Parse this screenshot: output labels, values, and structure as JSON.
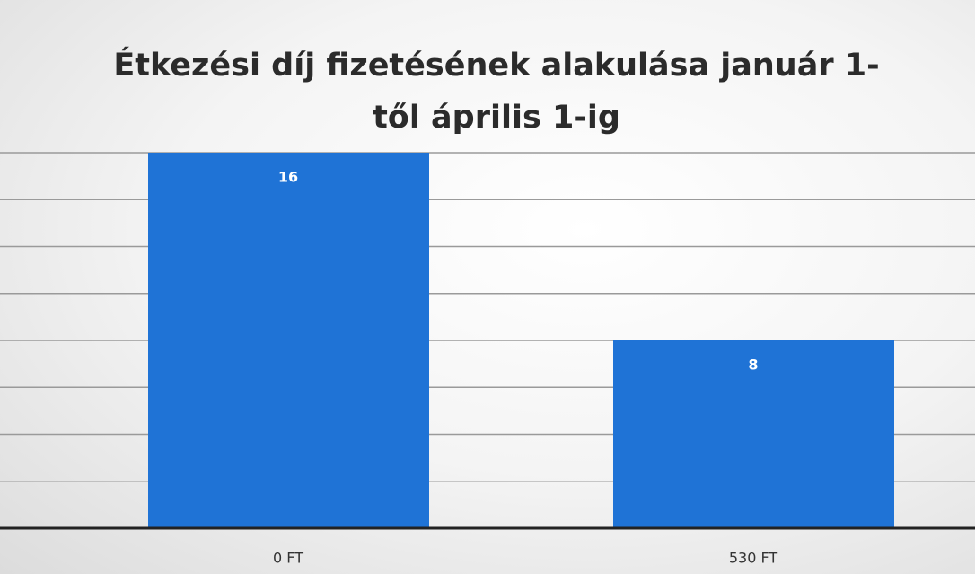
{
  "chart_data": {
    "type": "bar",
    "title": "Étkezési díj fizetésének alakulása január 1-től április 1-ig",
    "categories": [
      "0 FT",
      "530 FT"
    ],
    "values": [
      16,
      8
    ],
    "color": "#1f73d6",
    "ylim": [
      0,
      16
    ],
    "yticks": [
      0,
      2,
      4,
      6,
      8,
      10,
      12,
      14,
      16
    ],
    "grid": true
  }
}
